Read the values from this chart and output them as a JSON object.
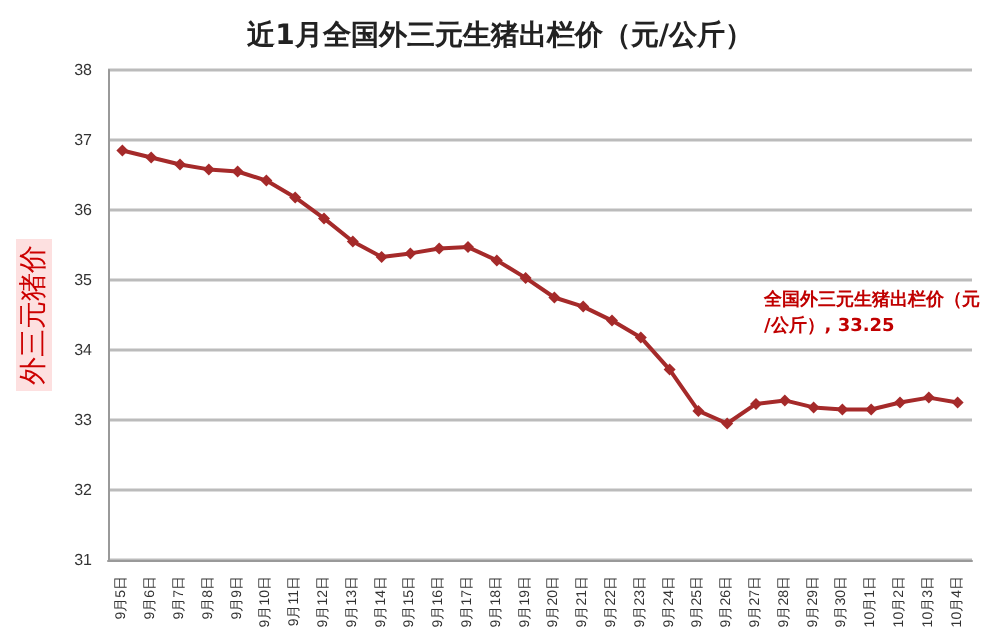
{
  "chart_data": {
    "type": "line",
    "title": "近1月全国外三元生猪出栏价（元/公斤）",
    "ylabel": "外三元猪价",
    "categories": [
      "9月5日",
      "9月6日",
      "9月7日",
      "9月8日",
      "9月9日",
      "9月10日",
      "9月11日",
      "9月12日",
      "9月13日",
      "9月14日",
      "9月15日",
      "9月16日",
      "9月17日",
      "9月18日",
      "9月19日",
      "9月20日",
      "9月21日",
      "9月22日",
      "9月23日",
      "9月24日",
      "9月25日",
      "9月26日",
      "9月27日",
      "9月28日",
      "9月29日",
      "9月30日",
      "10月1日",
      "10月2日",
      "10月3日",
      "10月4日"
    ],
    "series": [
      {
        "color": "#a52a2a",
        "values": [
          36.85,
          36.75,
          36.65,
          36.58,
          36.55,
          36.42,
          36.18,
          35.88,
          35.55,
          35.33,
          35.38,
          35.45,
          35.47,
          35.28,
          35.03,
          34.75,
          34.62,
          34.42,
          34.18,
          33.72,
          33.13,
          32.95,
          33.23,
          33.28,
          33.18,
          33.15,
          33.15,
          33.25,
          33.32,
          33.25
        ]
      }
    ],
    "ylim": [
      31,
      38
    ],
    "yticks": [
      31,
      32,
      33,
      34,
      35,
      36,
      37,
      38
    ],
    "grid": "y",
    "marker": "diamond",
    "line_style": "solid",
    "annotations": [
      "全国外三元生猪出栏价（元/公斤）, 33.25"
    ]
  }
}
